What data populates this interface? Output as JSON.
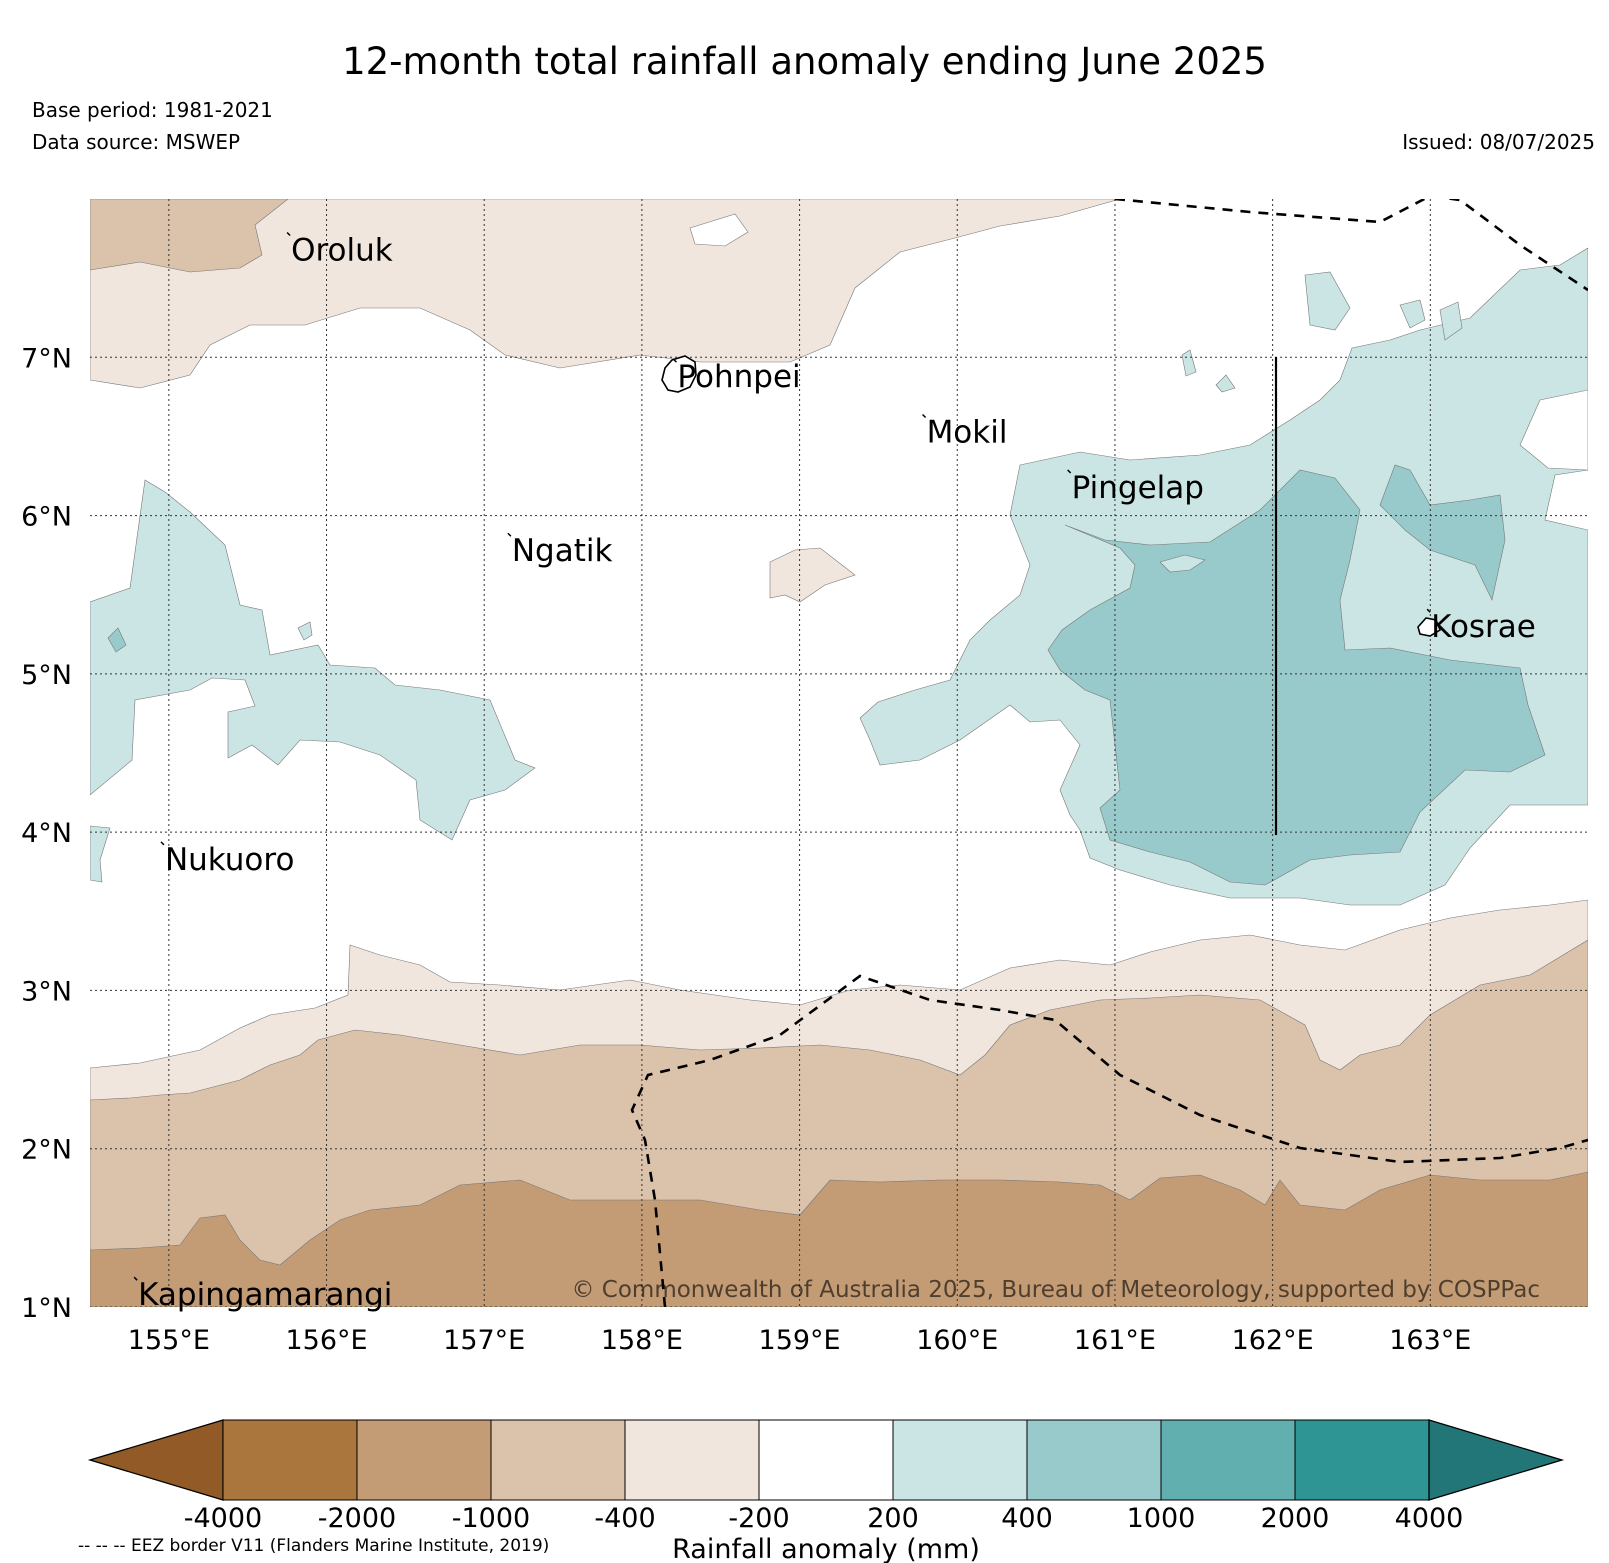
{
  "title": "12-month total rainfall anomaly ending June 2025",
  "base_period": "Base period: 1981-2021",
  "data_source": "Data source: MSWEP",
  "issued": "Issued: 08/07/2025",
  "copyright": "© Commonwealth of Australia 2025, Bureau of Meteorology, supported by COSPPac",
  "eez_note": "-- -- -- EEZ border V11 (Flanders Marine Institute, 2019)",
  "map": {
    "lat_labels": [
      "7°N",
      "6°N",
      "5°N",
      "4°N",
      "3°N",
      "2°N",
      "1°N"
    ],
    "lon_labels": [
      "155°E",
      "156°E",
      "157°E",
      "158°E",
      "159°E",
      "160°E",
      "161°E",
      "162°E",
      "163°E"
    ],
    "islands": [
      {
        "name": "Oroluk",
        "lon": 155.75,
        "lat": 7.7
      },
      {
        "name": "Pohnpei",
        "lon": 158.2,
        "lat": 6.9
      },
      {
        "name": "Mokil",
        "lon": 159.78,
        "lat": 6.55
      },
      {
        "name": "Pingelap",
        "lon": 160.7,
        "lat": 6.2
      },
      {
        "name": "Ngatik",
        "lon": 157.15,
        "lat": 5.8
      },
      {
        "name": "Kosrae",
        "lon": 162.98,
        "lat": 5.32
      },
      {
        "name": "Nukuoro",
        "lon": 154.95,
        "lat": 3.85
      },
      {
        "name": "Kapingamarangi",
        "lon": 154.78,
        "lat": 1.1
      }
    ]
  },
  "colorbar": {
    "label": "Rainfall anomaly (mm)",
    "ticks": [
      "-4000",
      "-2000",
      "-1000",
      "-400",
      "-200",
      "200",
      "400",
      "1000",
      "2000",
      "4000"
    ],
    "colors": [
      "#915a26",
      "#ab753e",
      "#c39b74",
      "#dbc2ab",
      "#f0e6de",
      "#ffffff",
      "#cae5e4",
      "#99cacb",
      "#62afb0",
      "#2e9594",
      "#227677"
    ]
  }
}
